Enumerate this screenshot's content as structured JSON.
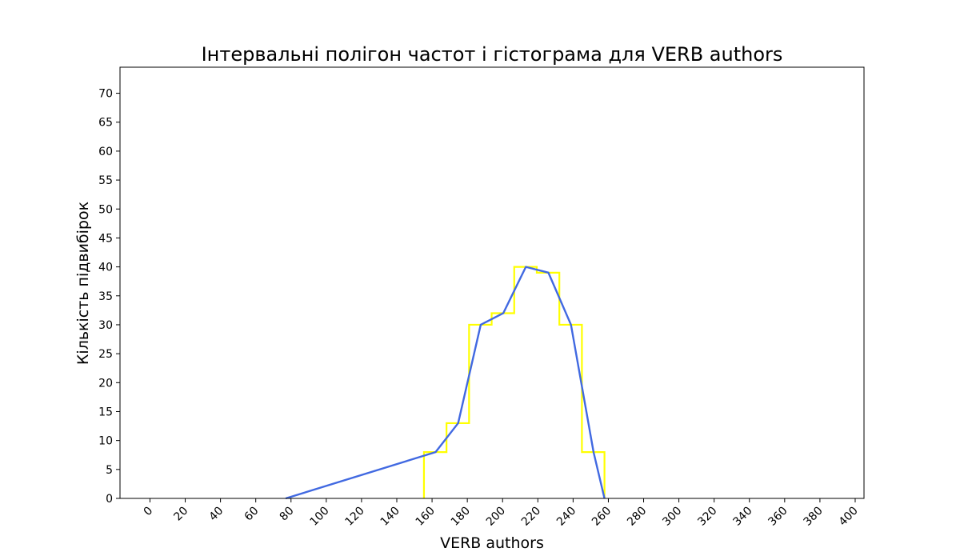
{
  "chart_data": {
    "type": "histogram",
    "title": "Інтервальні полігон частот і гістограма для VERB authors",
    "xlabel": "VERB authors",
    "ylabel": "Кількість підвибірок",
    "xlim": [
      -17,
      405
    ],
    "ylim": [
      0,
      74.5
    ],
    "x_ticks": [
      0,
      20,
      40,
      60,
      80,
      100,
      120,
      140,
      160,
      180,
      200,
      220,
      240,
      260,
      280,
      300,
      320,
      340,
      360,
      380,
      400
    ],
    "y_ticks": [
      0,
      5,
      10,
      15,
      20,
      25,
      30,
      35,
      40,
      45,
      50,
      55,
      60,
      65,
      70
    ],
    "grid": false,
    "series": [
      {
        "kind": "histogram-step",
        "color": "#ffff00",
        "bin_edges": [
          155.4,
          168.2,
          181.0,
          193.8,
          206.6,
          219.4,
          232.2,
          245.0,
          257.8
        ],
        "counts": [
          8,
          13,
          30,
          32,
          40,
          39,
          30,
          8
        ]
      },
      {
        "kind": "frequency-polygon",
        "color": "#4169e1",
        "x": [
          77.0,
          162.0,
          174.8,
          187.6,
          200.4,
          213.2,
          226.0,
          238.8,
          251.6,
          257.8
        ],
        "y": [
          0,
          8,
          13,
          30,
          32,
          40,
          39,
          30,
          8,
          0
        ]
      }
    ]
  }
}
